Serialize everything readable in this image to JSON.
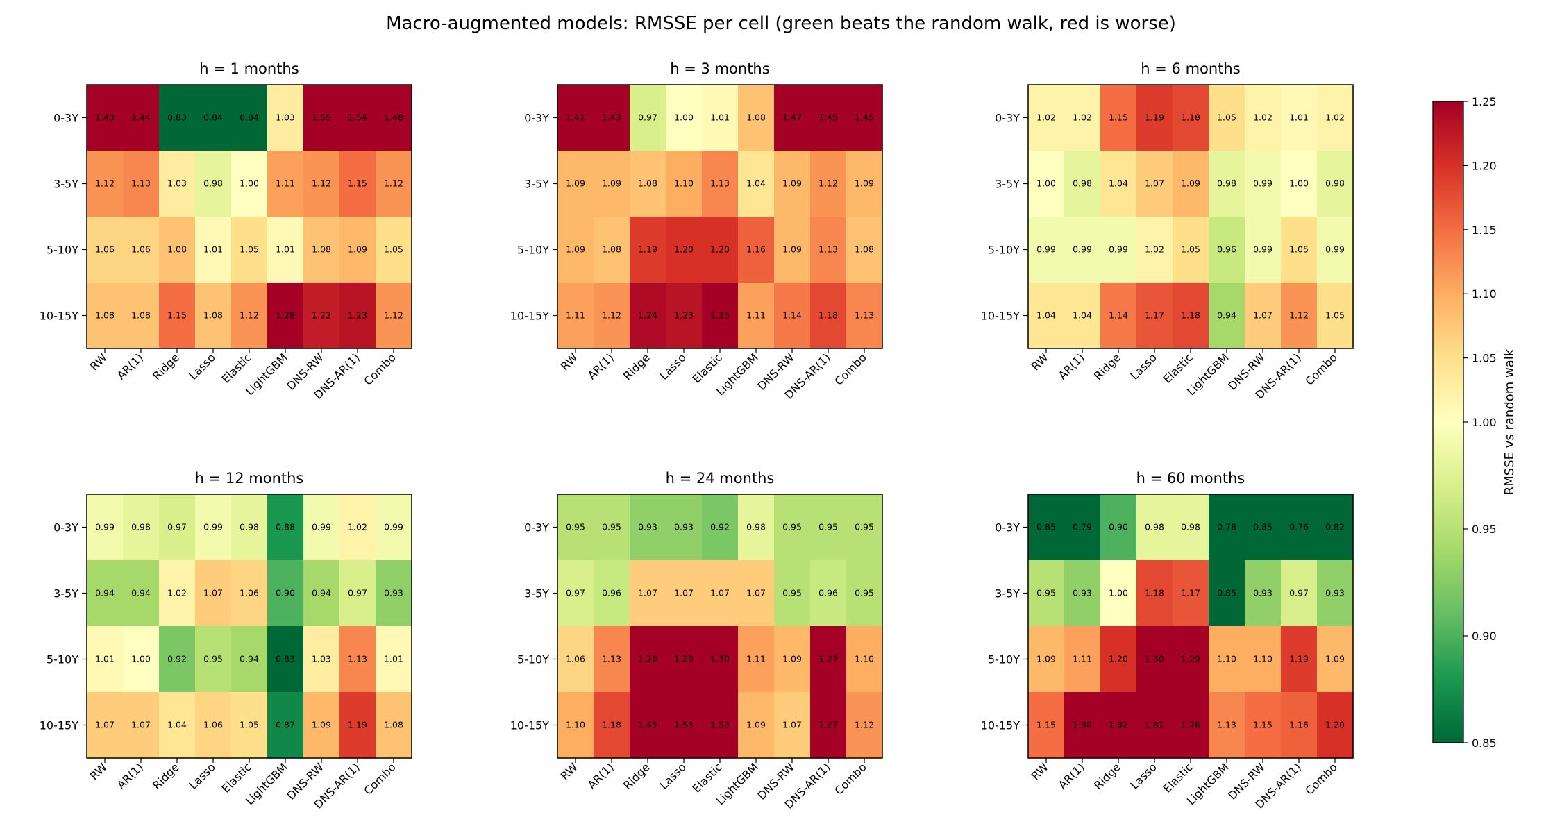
{
  "title": "Macro-augmented models: RMSSE per cell  (green beats the random walk, red is worse)",
  "chart_data": {
    "type": "heatmap",
    "models": [
      "RW",
      "AR(1)",
      "Ridge",
      "Lasso",
      "Elastic",
      "LightGBM",
      "DNS-RW",
      "DNS-AR(1)",
      "Combo"
    ],
    "maturities": [
      "0-3Y",
      "3-5Y",
      "5-10Y",
      "10-15Y"
    ],
    "colorbar": {
      "label": "RMSSE vs random walk",
      "vmin": 0.85,
      "vcenter": 1.0,
      "vmax": 1.25,
      "ticks": [
        "0.85",
        "0.90",
        "0.95",
        "1.00",
        "1.05",
        "1.10",
        "1.15",
        "1.20",
        "1.25"
      ],
      "colormap": "RdYlGn_r"
    },
    "panels": [
      {
        "title": "h = 1 months",
        "values": [
          [
            1.43,
            1.44,
            0.83,
            0.84,
            0.84,
            1.03,
            1.55,
            1.54,
            1.48
          ],
          [
            1.12,
            1.13,
            1.03,
            0.98,
            1.0,
            1.11,
            1.12,
            1.15,
            1.12
          ],
          [
            1.06,
            1.06,
            1.08,
            1.01,
            1.05,
            1.01,
            1.08,
            1.09,
            1.05
          ],
          [
            1.08,
            1.08,
            1.15,
            1.08,
            1.12,
            1.28,
            1.22,
            1.23,
            1.12
          ]
        ]
      },
      {
        "title": "h = 3 months",
        "values": [
          [
            1.41,
            1.43,
            0.97,
            1.0,
            1.01,
            1.08,
            1.47,
            1.45,
            1.45
          ],
          [
            1.09,
            1.09,
            1.08,
            1.1,
            1.13,
            1.04,
            1.09,
            1.12,
            1.09
          ],
          [
            1.09,
            1.08,
            1.19,
            1.2,
            1.2,
            1.16,
            1.09,
            1.13,
            1.08
          ],
          [
            1.11,
            1.12,
            1.24,
            1.23,
            1.25,
            1.11,
            1.14,
            1.18,
            1.13
          ]
        ]
      },
      {
        "title": "h = 6 months",
        "values": [
          [
            1.02,
            1.02,
            1.15,
            1.19,
            1.18,
            1.05,
            1.02,
            1.01,
            1.02
          ],
          [
            1.0,
            0.98,
            1.04,
            1.07,
            1.09,
            0.98,
            0.99,
            1.0,
            0.98
          ],
          [
            0.99,
            0.99,
            0.99,
            1.02,
            1.05,
            0.96,
            0.99,
            1.05,
            0.99
          ],
          [
            1.04,
            1.04,
            1.14,
            1.17,
            1.18,
            0.94,
            1.07,
            1.12,
            1.05
          ]
        ]
      },
      {
        "title": "h = 12 months",
        "values": [
          [
            0.99,
            0.98,
            0.97,
            0.99,
            0.98,
            0.88,
            0.99,
            1.02,
            0.99
          ],
          [
            0.94,
            0.94,
            1.02,
            1.07,
            1.06,
            0.9,
            0.94,
            0.97,
            0.93
          ],
          [
            1.01,
            1.0,
            0.92,
            0.95,
            0.94,
            0.83,
            1.03,
            1.13,
            1.01
          ],
          [
            1.07,
            1.07,
            1.04,
            1.06,
            1.05,
            0.87,
            1.09,
            1.19,
            1.08
          ]
        ]
      },
      {
        "title": "h = 24 months",
        "values": [
          [
            0.95,
            0.95,
            0.93,
            0.93,
            0.92,
            0.98,
            0.95,
            0.95,
            0.95
          ],
          [
            0.97,
            0.96,
            1.07,
            1.07,
            1.07,
            1.07,
            0.95,
            0.96,
            0.95
          ],
          [
            1.06,
            1.13,
            1.26,
            1.29,
            1.3,
            1.11,
            1.09,
            1.27,
            1.1
          ],
          [
            1.1,
            1.18,
            1.45,
            1.53,
            1.53,
            1.09,
            1.07,
            1.27,
            1.12
          ]
        ]
      },
      {
        "title": "h = 60 months",
        "values": [
          [
            0.85,
            0.79,
            0.9,
            0.98,
            0.98,
            0.78,
            0.85,
            0.76,
            0.82
          ],
          [
            0.95,
            0.93,
            1.0,
            1.18,
            1.17,
            0.85,
            0.93,
            0.97,
            0.93
          ],
          [
            1.09,
            1.11,
            1.2,
            1.3,
            1.29,
            1.1,
            1.1,
            1.19,
            1.09
          ],
          [
            1.15,
            1.3,
            1.82,
            1.81,
            1.76,
            1.13,
            1.15,
            1.16,
            1.2
          ]
        ]
      }
    ]
  }
}
